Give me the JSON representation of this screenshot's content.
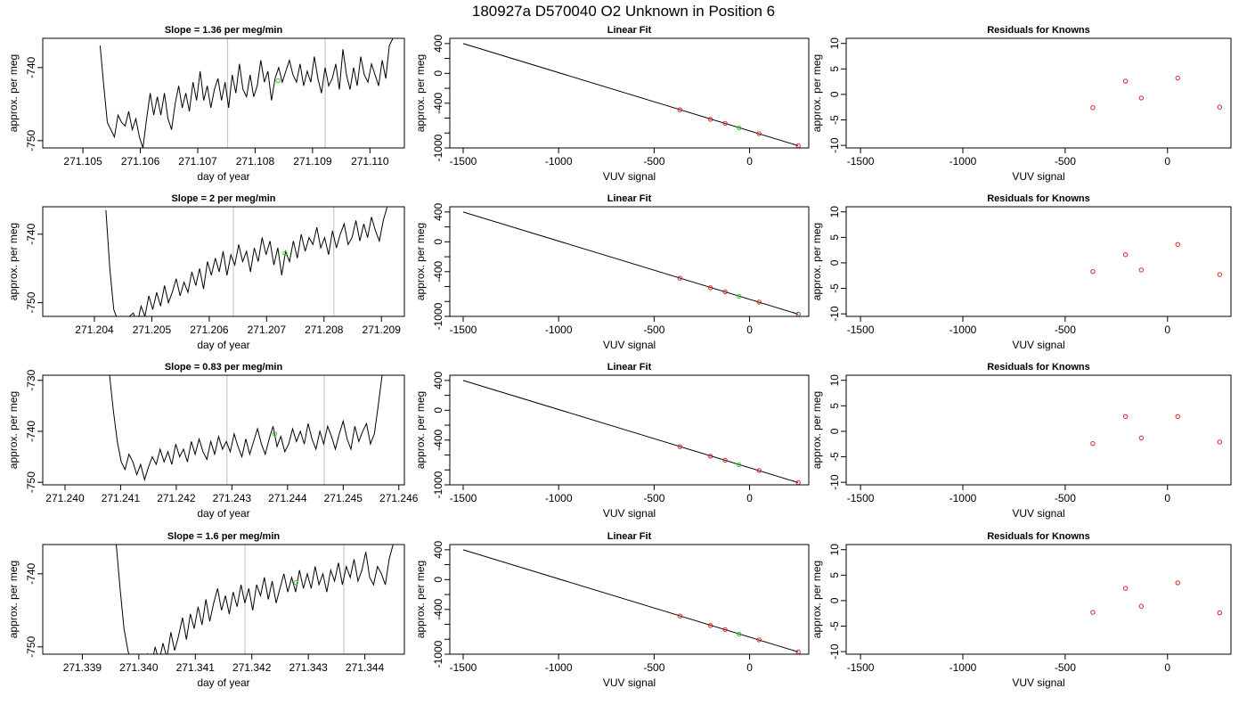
{
  "figure": {
    "title": "180927a      D570040    O2 Unknown in Position  6"
  },
  "chart_data": [
    {
      "type": "line",
      "title": "Slope =  1.36  per meg/min",
      "xlabel": "day of year",
      "ylabel": "approx. per meg",
      "xlim": [
        271.1043,
        271.1106
      ],
      "ylim": [
        -751,
        -736
      ],
      "xticks": [
        271.105,
        271.106,
        271.107,
        271.108,
        271.109,
        271.11
      ],
      "xtick_labels": [
        "271.105",
        "271.106",
        "271.107",
        "271.108",
        "271.109",
        "271.110"
      ],
      "yticks": [
        -750,
        -740
      ],
      "ytick_labels": [
        "-750",
        "-740"
      ],
      "vlines": [
        271.10752,
        271.10922
      ],
      "trace": {
        "x_start": 271.1053,
        "x_end": 271.1104,
        "y": [
          -737.0,
          -742.5,
          -747.5,
          -748.5,
          -749.5,
          -746.5,
          -747.5,
          -748.0,
          -746.0,
          -748.5,
          -747.0,
          -749.5,
          -751.0,
          -747.0,
          -743.5,
          -746.5,
          -744.0,
          -746.5,
          -743.5,
          -747.0,
          -748.5,
          -745.0,
          -742.5,
          -745.5,
          -743.5,
          -746.0,
          -742.0,
          -744.5,
          -740.5,
          -744.5,
          -742.5,
          -745.5,
          -743.0,
          -741.5,
          -744.5,
          -742.0,
          -745.5,
          -741.0,
          -743.5,
          -739.5,
          -743.0,
          -744.0,
          -741.0,
          -744.0,
          -742.5,
          -739.0,
          -742.0,
          -740.5,
          -744.5,
          -741.5,
          -740.0,
          -742.0,
          -740.5,
          -739.0,
          -741.0,
          -742.0,
          -739.5,
          -742.5,
          -740.5,
          -742.0,
          -738.5,
          -741.5,
          -743.5,
          -740.0,
          -742.5,
          -741.5,
          -739.5,
          -743.0,
          -737.5,
          -741.0,
          -743.0,
          -740.0,
          -742.5,
          -738.5,
          -741.0,
          -742.0,
          -739.5,
          -741.0,
          -742.5,
          -739.0,
          -741.5,
          -737.0,
          -736.0
        ]
      },
      "marker": {
        "x": 271.1084,
        "y": -741.8
      }
    },
    {
      "type": "scatter",
      "title": "Linear Fit",
      "xlabel": "VUV signal",
      "ylabel": "approx. per meg",
      "xlim": [
        -1570,
        310
      ],
      "ylim": [
        -1000,
        470
      ],
      "xticks": [
        -1500,
        -1000,
        -500,
        0
      ],
      "xtick_labels": [
        "-1500",
        "-1000",
        "-500",
        "0"
      ],
      "yticks": [
        400,
        0,
        -400,
        -1000
      ],
      "ytick_labels": [
        "400",
        "0",
        "-400",
        "-1000"
      ],
      "ytick_minor": [
        200,
        -200,
        -600,
        -800
      ],
      "fit_line": {
        "x": [
          -1500,
          255
        ],
        "y": [
          400,
          -970
        ]
      },
      "known_points": {
        "x": [
          -365,
          -205,
          -128,
          50,
          255
        ],
        "y": [
          -488,
          -615,
          -670,
          -808,
          -970
        ]
      },
      "unknown_point": {
        "x": -55,
        "y": -730
      }
    },
    {
      "type": "scatter",
      "title": "Residuals for Knowns",
      "xlabel": "VUV signal",
      "ylabel": "approx. per meg",
      "xlim": [
        -1570,
        310
      ],
      "ylim": [
        -10.5,
        11
      ],
      "xticks": [
        -1500,
        -1000,
        -500,
        0
      ],
      "xtick_labels": [
        "-1500",
        "-1000",
        "-500",
        "0"
      ],
      "yticks": [
        10,
        5,
        0,
        -5,
        -10
      ],
      "ytick_labels": [
        "10",
        "5",
        "0",
        "-5",
        "-10"
      ],
      "known_points": {
        "x": [
          -365,
          -205,
          -128,
          50,
          255
        ],
        "y": [
          -2.6,
          2.6,
          -0.7,
          3.2,
          -2.5
        ]
      }
    },
    {
      "type": "line",
      "title": "Slope =  2  per meg/min",
      "xlabel": "day of year",
      "ylabel": "approx. per meg",
      "xlim": [
        271.2031,
        271.2094
      ],
      "ylim": [
        -752,
        -736
      ],
      "xticks": [
        271.204,
        271.205,
        271.206,
        271.207,
        271.208,
        271.209
      ],
      "xtick_labels": [
        "271.204",
        "271.205",
        "271.206",
        "271.207",
        "271.208",
        "271.209"
      ],
      "yticks": [
        -750,
        -740
      ],
      "ytick_labels": [
        "-750",
        "-740"
      ],
      "vlines": [
        271.20642,
        271.20817
      ],
      "trace": {
        "x_start": 271.2042,
        "x_end": 271.2091,
        "y": [
          -736.5,
          -745.0,
          -751.0,
          -752.5,
          -754.0,
          -754.0,
          -752.0,
          -751.5,
          -753.0,
          -750.5,
          -752.0,
          -749.0,
          -751.0,
          -748.5,
          -750.5,
          -747.5,
          -750.0,
          -748.5,
          -746.5,
          -749.0,
          -747.0,
          -748.5,
          -745.5,
          -747.5,
          -745.0,
          -748.0,
          -744.0,
          -746.0,
          -743.5,
          -745.5,
          -742.5,
          -746.0,
          -743.0,
          -744.5,
          -741.5,
          -744.0,
          -742.5,
          -745.5,
          -742.0,
          -744.0,
          -740.5,
          -743.0,
          -741.0,
          -744.5,
          -742.0,
          -746.0,
          -742.5,
          -744.0,
          -741.0,
          -743.5,
          -740.0,
          -742.5,
          -740.5,
          -741.5,
          -739.0,
          -742.0,
          -740.5,
          -743.0,
          -739.5,
          -742.0,
          -740.0,
          -738.5,
          -741.5,
          -740.5,
          -738.0,
          -741.0,
          -738.5,
          -740.5,
          -737.5,
          -739.5,
          -741.0,
          -738.0,
          -736.0
        ]
      },
      "marker": {
        "x": 271.20732,
        "y": -742.8
      }
    },
    {
      "type": "scatter",
      "title": "Linear Fit",
      "xlabel": "VUV signal",
      "ylabel": "approx. per meg",
      "xlim": [
        -1570,
        310
      ],
      "ylim": [
        -1000,
        470
      ],
      "xticks": [
        -1500,
        -1000,
        -500,
        0
      ],
      "xtick_labels": [
        "-1500",
        "-1000",
        "-500",
        "0"
      ],
      "yticks": [
        400,
        0,
        -400,
        -1000
      ],
      "ytick_labels": [
        "400",
        "0",
        "-400",
        "-1000"
      ],
      "ytick_minor": [
        200,
        -200,
        -600,
        -800
      ],
      "fit_line": {
        "x": [
          -1500,
          255
        ],
        "y": [
          400,
          -970
        ]
      },
      "known_points": {
        "x": [
          -365,
          -205,
          -128,
          50,
          255
        ],
        "y": [
          -488,
          -615,
          -670,
          -808,
          -970
        ]
      },
      "unknown_point": {
        "x": -55,
        "y": -730
      }
    },
    {
      "type": "scatter",
      "title": "Residuals for Knowns",
      "xlabel": "VUV signal",
      "ylabel": "approx. per meg",
      "xlim": [
        -1570,
        310
      ],
      "ylim": [
        -10.5,
        11
      ],
      "xticks": [
        -1500,
        -1000,
        -500,
        0
      ],
      "xtick_labels": [
        "-1500",
        "-1000",
        "-500",
        "0"
      ],
      "yticks": [
        10,
        5,
        0,
        -5,
        -10
      ],
      "ytick_labels": [
        "10",
        "5",
        "0",
        "-5",
        "-10"
      ],
      "known_points": {
        "x": [
          -365,
          -205,
          -128,
          50,
          255
        ],
        "y": [
          -1.7,
          1.6,
          -1.4,
          3.6,
          -2.3
        ]
      }
    },
    {
      "type": "line",
      "title": "Slope =  0.83  per meg/min",
      "xlabel": "day of year",
      "ylabel": "approx. per meg",
      "xlim": [
        271.2396,
        271.2461
      ],
      "ylim": [
        -750.5,
        -729
      ],
      "xticks": [
        271.24,
        271.241,
        271.242,
        271.243,
        271.244,
        271.245,
        271.246
      ],
      "xtick_labels": [
        "271.240",
        "271.241",
        "271.242",
        "271.243",
        "271.244",
        "271.245",
        "271.246"
      ],
      "yticks": [
        -750,
        -740,
        -730
      ],
      "ytick_labels": [
        "-750",
        "-740",
        "-730"
      ],
      "vlines": [
        271.24291,
        271.24466
      ],
      "trace": {
        "x_start": 271.2408,
        "x_end": 271.2457,
        "y": [
          -729.0,
          -736.0,
          -742.0,
          -746.0,
          -747.5,
          -744.5,
          -746.0,
          -748.5,
          -746.5,
          -749.5,
          -747.0,
          -745.0,
          -746.5,
          -743.5,
          -746.0,
          -744.0,
          -746.5,
          -742.5,
          -745.0,
          -743.5,
          -746.0,
          -742.0,
          -744.5,
          -741.5,
          -744.0,
          -745.5,
          -742.0,
          -744.5,
          -741.0,
          -743.5,
          -742.0,
          -744.0,
          -740.5,
          -743.0,
          -745.0,
          -741.5,
          -744.5,
          -742.0,
          -739.5,
          -742.5,
          -744.5,
          -741.5,
          -739.0,
          -743.0,
          -741.0,
          -744.0,
          -742.5,
          -739.5,
          -742.0,
          -740.0,
          -742.5,
          -738.5,
          -741.5,
          -743.5,
          -740.0,
          -742.5,
          -739.0,
          -741.0,
          -743.5,
          -740.5,
          -738.0,
          -741.5,
          -743.5,
          -739.0,
          -742.0,
          -740.0,
          -738.5,
          -742.5,
          -740.5,
          -735.0,
          -729.0
        ]
      },
      "marker": {
        "x": 271.24377,
        "y": -740.5
      }
    },
    {
      "type": "scatter",
      "title": "Linear Fit",
      "xlabel": "VUV signal",
      "ylabel": "approx. per meg",
      "xlim": [
        -1570,
        310
      ],
      "ylim": [
        -1000,
        470
      ],
      "xticks": [
        -1500,
        -1000,
        -500,
        0
      ],
      "xtick_labels": [
        "-1500",
        "-1000",
        "-500",
        "0"
      ],
      "yticks": [
        400,
        0,
        -400,
        -1000
      ],
      "ytick_labels": [
        "400",
        "0",
        "-400",
        "-1000"
      ],
      "ytick_minor": [
        200,
        -200,
        -600,
        -800
      ],
      "fit_line": {
        "x": [
          -1500,
          255
        ],
        "y": [
          400,
          -970
        ]
      },
      "known_points": {
        "x": [
          -365,
          -205,
          -128,
          50,
          255
        ],
        "y": [
          -488,
          -615,
          -670,
          -808,
          -970
        ]
      },
      "unknown_point": {
        "x": -55,
        "y": -730
      }
    },
    {
      "type": "scatter",
      "title": "Residuals for Knowns",
      "xlabel": "VUV signal",
      "ylabel": "approx. per meg",
      "xlim": [
        -1570,
        310
      ],
      "ylim": [
        -10.5,
        11
      ],
      "xticks": [
        -1500,
        -1000,
        -500,
        0
      ],
      "xtick_labels": [
        "-1500",
        "-1000",
        "-500",
        "0"
      ],
      "yticks": [
        10,
        5,
        0,
        -5,
        -10
      ],
      "ytick_labels": [
        "10",
        "5",
        "0",
        "-5",
        "-10"
      ],
      "known_points": {
        "x": [
          -365,
          -205,
          -128,
          50,
          255
        ],
        "y": [
          -2.4,
          2.9,
          -1.3,
          2.9,
          -2.1
        ]
      }
    },
    {
      "type": "line",
      "title": "Slope =  1.6  per meg/min",
      "xlabel": "day of year",
      "ylabel": "approx. per meg",
      "xlim": [
        271.3383,
        271.3447
      ],
      "ylim": [
        -751,
        -736
      ],
      "xticks": [
        271.339,
        271.34,
        271.341,
        271.342,
        271.343,
        271.344
      ],
      "xtick_labels": [
        "271.339",
        "271.340",
        "271.341",
        "271.342",
        "271.343",
        "271.344"
      ],
      "yticks": [
        -750,
        -740
      ],
      "ytick_labels": [
        "-750",
        "-740"
      ],
      "vlines": [
        271.34188,
        271.34363
      ],
      "trace": {
        "x_start": 271.3396,
        "x_end": 271.3445,
        "y": [
          -736.0,
          -742.0,
          -747.5,
          -750.5,
          -752.5,
          -753.0,
          -752.0,
          -753.5,
          -751.0,
          -752.5,
          -750.0,
          -752.0,
          -749.5,
          -751.5,
          -748.0,
          -750.5,
          -748.5,
          -746.0,
          -749.0,
          -745.5,
          -747.5,
          -744.5,
          -747.0,
          -743.5,
          -746.5,
          -744.0,
          -742.0,
          -745.0,
          -743.0,
          -745.5,
          -742.5,
          -744.5,
          -741.5,
          -744.0,
          -742.0,
          -745.0,
          -741.5,
          -743.0,
          -740.5,
          -743.5,
          -741.0,
          -744.0,
          -742.0,
          -740.0,
          -742.5,
          -740.5,
          -742.5,
          -739.5,
          -742.0,
          -740.0,
          -742.0,
          -739.0,
          -741.5,
          -740.0,
          -742.5,
          -739.5,
          -741.0,
          -738.5,
          -741.5,
          -739.0,
          -740.5,
          -738.0,
          -741.0,
          -739.5,
          -737.0,
          -740.5,
          -741.5,
          -739.0,
          -740.0,
          -741.5,
          -738.0,
          -736.0
        ]
      },
      "marker": {
        "x": 271.34278,
        "y": -741.2
      }
    },
    {
      "type": "scatter",
      "title": "Linear Fit",
      "xlabel": "VUV signal",
      "ylabel": "approx. per meg",
      "xlim": [
        -1570,
        310
      ],
      "ylim": [
        -1000,
        470
      ],
      "xticks": [
        -1500,
        -1000,
        -500,
        0
      ],
      "xtick_labels": [
        "-1500",
        "-1000",
        "-500",
        "0"
      ],
      "yticks": [
        400,
        0,
        -400,
        -1000
      ],
      "ytick_labels": [
        "400",
        "0",
        "-400",
        "-1000"
      ],
      "ytick_minor": [
        200,
        -200,
        -600,
        -800
      ],
      "fit_line": {
        "x": [
          -1500,
          255
        ],
        "y": [
          400,
          -970
        ]
      },
      "known_points": {
        "x": [
          -365,
          -205,
          -128,
          50,
          255
        ],
        "y": [
          -488,
          -615,
          -670,
          -808,
          -970
        ]
      },
      "unknown_point": {
        "x": -55,
        "y": -730
      }
    },
    {
      "type": "scatter",
      "title": "Residuals for Knowns",
      "xlabel": "VUV signal",
      "ylabel": "approx. per meg",
      "xlim": [
        -1570,
        310
      ],
      "ylim": [
        -10.5,
        11
      ],
      "xticks": [
        -1500,
        -1000,
        -500,
        0
      ],
      "xtick_labels": [
        "-1500",
        "-1000",
        "-500",
        "0"
      ],
      "yticks": [
        10,
        5,
        0,
        -5,
        -10
      ],
      "ytick_labels": [
        "10",
        "5",
        "0",
        "-5",
        "-10"
      ],
      "known_points": {
        "x": [
          -365,
          -205,
          -128,
          50,
          255
        ],
        "y": [
          -2.3,
          2.4,
          -1.1,
          3.5,
          -2.4
        ]
      }
    }
  ],
  "colors": {
    "trace": "#000000",
    "vline": "#c8c8c8",
    "known_point": "#d62728",
    "unknown_point": "#33cc33",
    "axes": "#000000"
  }
}
